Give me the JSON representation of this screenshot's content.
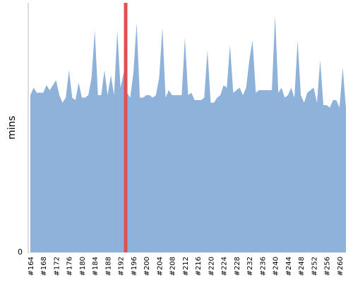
{
  "chart_data": {
    "type": "area",
    "y_label": "mins",
    "categories": [
      "#164",
      null,
      null,
      null,
      "#168",
      null,
      null,
      null,
      "#172",
      null,
      null,
      null,
      "#176",
      null,
      null,
      null,
      "#180",
      null,
      null,
      null,
      "#184",
      null,
      null,
      null,
      "#188",
      null,
      null,
      null,
      "#192",
      null,
      null,
      null,
      "#196",
      null,
      null,
      null,
      "#200",
      null,
      null,
      null,
      "#204",
      null,
      null,
      null,
      "#208",
      null,
      null,
      null,
      "#212",
      null,
      null,
      null,
      "#216",
      null,
      null,
      null,
      "#220",
      null,
      null,
      null,
      "#224",
      null,
      null,
      null,
      "#228",
      null,
      null,
      null,
      "#232",
      null,
      null,
      null,
      "#236",
      null,
      null,
      null,
      "#240",
      null,
      null,
      null,
      "#244",
      null,
      null,
      null,
      "#248",
      null,
      null,
      null,
      "#252",
      null,
      null,
      null,
      "#256",
      null,
      null,
      null,
      "#260",
      null,
      null
    ],
    "values": [
      63,
      66,
      64,
      64,
      64,
      67,
      65,
      67,
      69,
      63,
      60,
      62,
      73,
      62,
      61,
      68,
      62,
      62,
      63,
      70,
      89,
      63,
      63,
      73,
      63,
      71,
      63,
      89,
      66,
      72,
      64,
      62,
      72,
      92,
      62,
      62,
      63,
      63,
      62,
      63,
      70,
      90,
      62,
      65,
      63,
      63,
      63,
      63,
      86,
      63,
      64,
      61,
      61,
      61,
      62,
      81,
      60,
      60,
      62,
      63,
      67,
      66,
      83,
      64,
      65,
      66,
      63,
      66,
      77,
      85,
      64,
      65,
      65,
      65,
      65,
      65,
      95,
      64,
      66,
      62,
      63,
      66,
      62,
      85,
      63,
      60,
      64,
      65,
      66,
      60,
      77,
      59,
      59,
      58,
      61,
      61,
      58,
      74,
      58
    ],
    "color": "#8fb2db",
    "ylim": [
      0,
      100
    ],
    "yticks": [
      0
    ]
  }
}
